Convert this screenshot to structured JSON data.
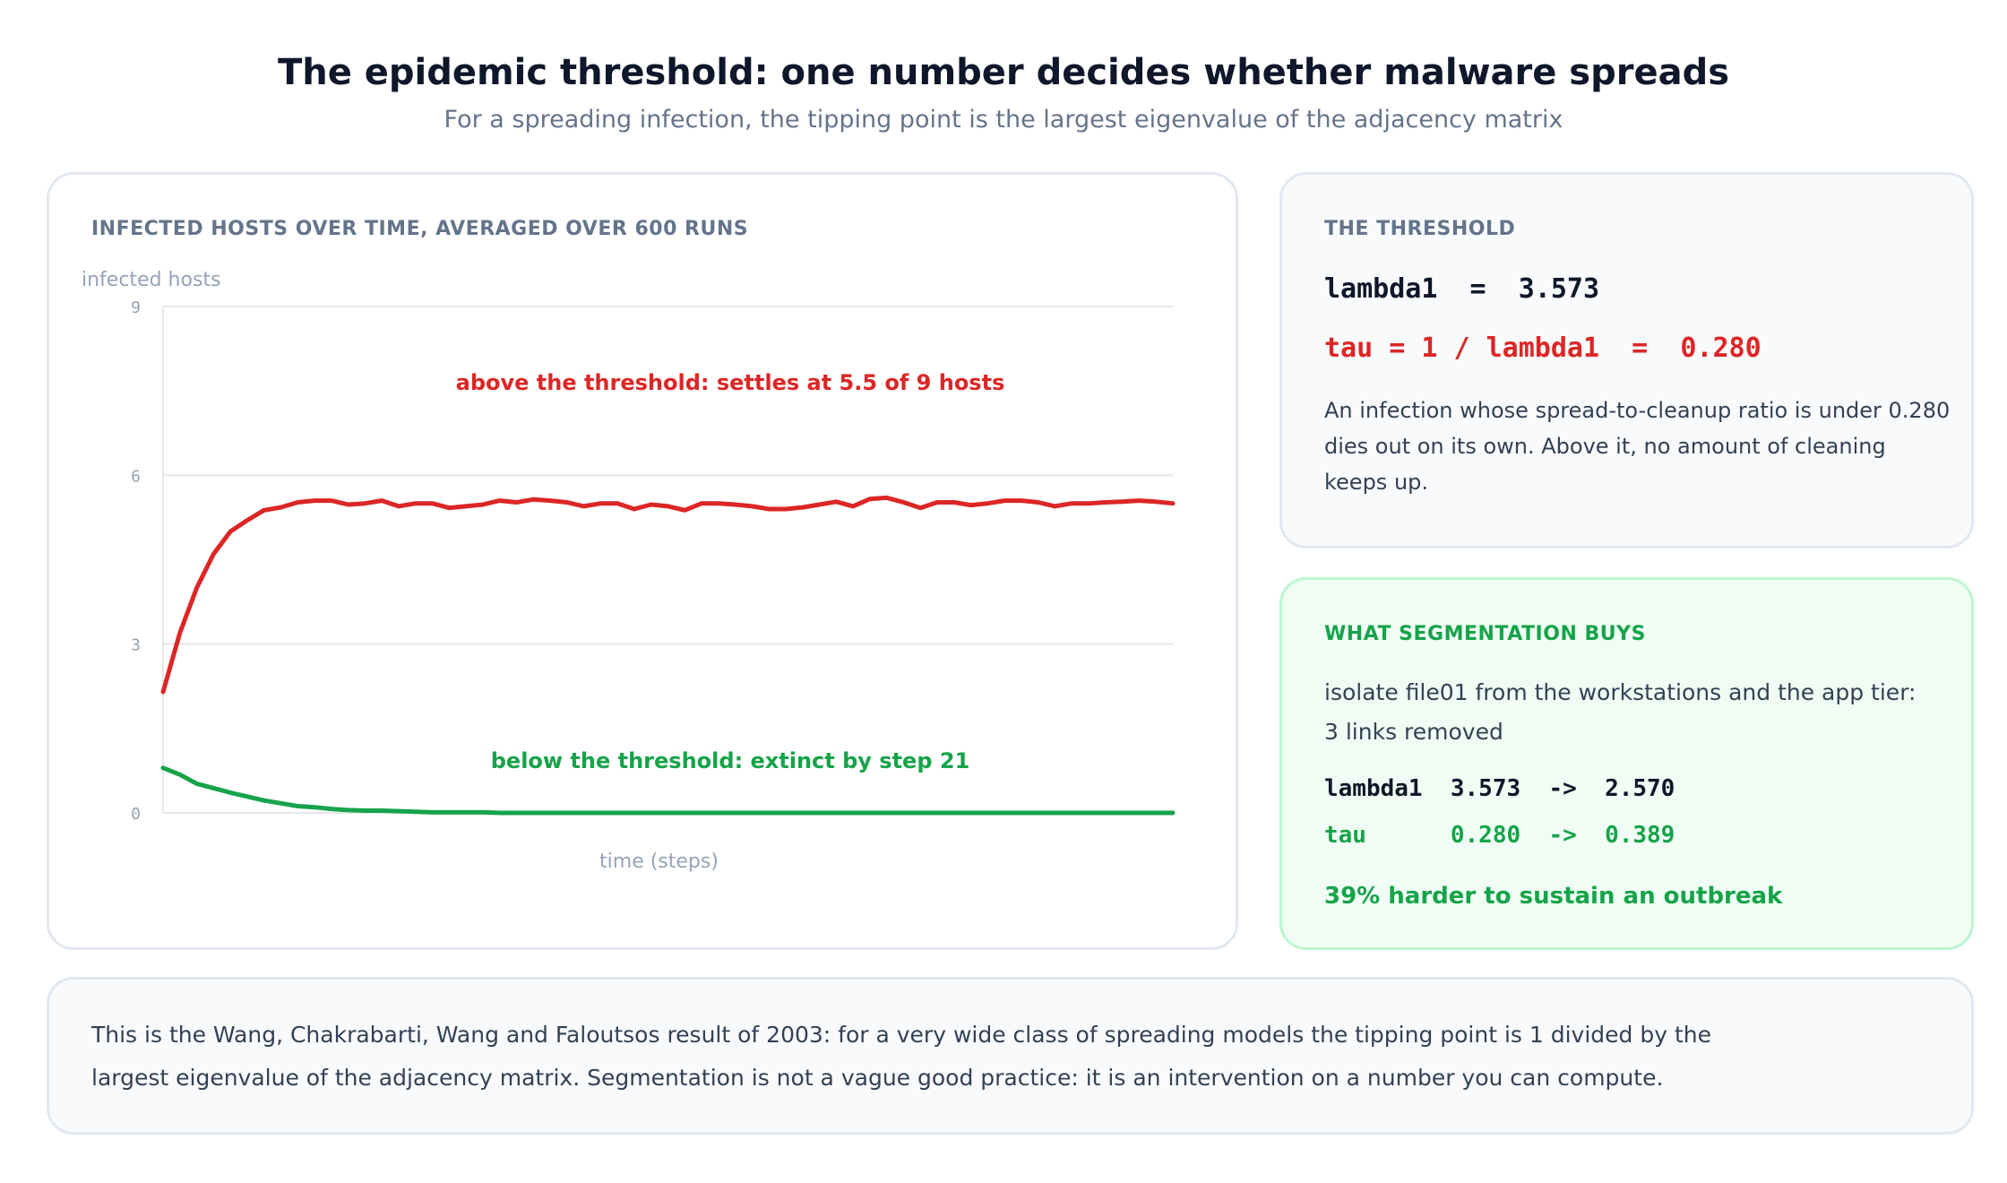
{
  "header": {
    "title": "The epidemic threshold: one number decides whether malware spreads",
    "subtitle": "For a spreading infection, the tipping point is the largest eigenvalue of the adjacency matrix"
  },
  "chart_card": {
    "heading": "INFECTED HOSTS OVER TIME, AVERAGED OVER 600 RUNS"
  },
  "chart_data": {
    "type": "line",
    "title": "INFECTED HOSTS OVER TIME, AVERAGED OVER 600 RUNS",
    "xlabel": "time (steps)",
    "ylabel": "infected hosts",
    "xlim": [
      0,
      60
    ],
    "ylim": [
      0,
      9
    ],
    "yticks": [
      0,
      3,
      6,
      9
    ],
    "grid": true,
    "x": [
      0,
      1,
      2,
      3,
      4,
      5,
      6,
      7,
      8,
      9,
      10,
      11,
      12,
      13,
      14,
      15,
      16,
      17,
      18,
      19,
      20,
      21,
      22,
      23,
      24,
      25,
      26,
      27,
      28,
      29,
      30,
      31,
      32,
      33,
      34,
      35,
      36,
      37,
      38,
      39,
      40,
      41,
      42,
      43,
      44,
      45,
      46,
      47,
      48,
      49,
      50,
      51,
      52,
      53,
      54,
      55,
      56,
      57,
      58,
      59,
      60
    ],
    "series": [
      {
        "color": "#dc2626",
        "values": [
          2.15,
          3.2,
          4.0,
          4.6,
          5.0,
          5.2,
          5.38,
          5.43,
          5.52,
          5.55,
          5.55,
          5.48,
          5.5,
          5.55,
          5.45,
          5.5,
          5.5,
          5.42,
          5.45,
          5.48,
          5.55,
          5.52,
          5.57,
          5.55,
          5.52,
          5.45,
          5.5,
          5.5,
          5.4,
          5.48,
          5.45,
          5.38,
          5.5,
          5.5,
          5.48,
          5.45,
          5.4,
          5.4,
          5.43,
          5.48,
          5.53,
          5.45,
          5.58,
          5.6,
          5.52,
          5.42,
          5.52,
          5.52,
          5.47,
          5.5,
          5.55,
          5.55,
          5.52,
          5.45,
          5.5,
          5.5,
          5.52,
          5.53,
          5.55,
          5.53,
          5.5
        ]
      },
      {
        "color": "#16a34a",
        "values": [
          0.8,
          0.68,
          0.52,
          0.44,
          0.36,
          0.29,
          0.22,
          0.17,
          0.12,
          0.1,
          0.07,
          0.05,
          0.04,
          0.04,
          0.03,
          0.02,
          0.01,
          0.01,
          0.01,
          0.01,
          0.0,
          0.0,
          0.0,
          0.0,
          0.0,
          0.0,
          0.0,
          0.0,
          0.0,
          0.0,
          0.0,
          0.0,
          0.0,
          0.0,
          0.0,
          0.0,
          0.0,
          0.0,
          0.0,
          0.0,
          0.0,
          0.0,
          0.0,
          0.0,
          0.0,
          0.0,
          0.0,
          0.0,
          0.0,
          0.0,
          0.0,
          0.0,
          0.0,
          0.0,
          0.0,
          0.0,
          0.0,
          0.0,
          0.0,
          0.0,
          0.0
        ]
      }
    ],
    "annotations": [
      {
        "text": "above the threshold: settles at 5.5 of 9 hosts",
        "color": "#dc2626"
      },
      {
        "text": "below the threshold: extinct by step 21",
        "color": "#16a34a"
      }
    ]
  },
  "threshold": {
    "heading": "THE THRESHOLD",
    "lambda_line": "lambda1  =  3.573",
    "tau_line": "tau = 1 / lambda1  =  0.280",
    "description": "An infection whose spread-to-cleanup ratio is under 0.280 dies out on its own. Above it, no amount of cleaning keeps up."
  },
  "segmentation": {
    "heading": "WHAT SEGMENTATION BUYS",
    "description": "isolate file01 from the workstations and the app tier: 3 links removed",
    "lambda_line": "lambda1  3.573  ->  2.570",
    "tau_line": "tau      0.280  ->  0.389",
    "result": "39% harder to sustain an outbreak"
  },
  "footer": {
    "text": "This is the Wang, Chakrabarti, Wang and Faloutsos result of 2003: for a very wide class of spreading models the tipping point is 1 divided by the largest eigenvalue of the adjacency matrix. Segmentation is not a vague good practice: it is an intervention on a number you can compute."
  }
}
